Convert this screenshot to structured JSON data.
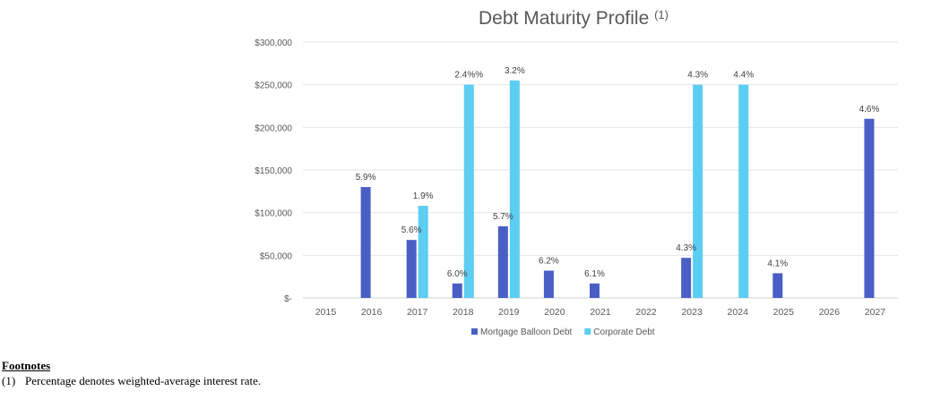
{
  "chart_data": {
    "type": "bar",
    "title": "Debt Maturity Profile",
    "title_superscript": "(1)",
    "categories": [
      "2015",
      "2016",
      "2017",
      "2018",
      "2019",
      "2020",
      "2021",
      "2022",
      "2023",
      "2024",
      "2025",
      "2026",
      "2027"
    ],
    "series": [
      {
        "name": "Mortgage Balloon Debt",
        "color": "#4a5fc6",
        "values": [
          0,
          130000,
          68000,
          17000,
          84000,
          32000,
          17000,
          0,
          47000,
          0,
          29000,
          0,
          210000
        ],
        "labels": [
          "",
          "5.9%",
          "5.6%",
          "6.0%",
          "5.7%",
          "6.2%",
          "6.1%",
          "",
          "4.3%",
          "",
          "4.1%",
          "",
          "4.6%"
        ]
      },
      {
        "name": "Corporate Debt",
        "color": "#5ccdf3",
        "values": [
          0,
          0,
          108000,
          250000,
          255000,
          0,
          0,
          0,
          250000,
          250000,
          0,
          0,
          0
        ],
        "labels": [
          "",
          "",
          "1.9%",
          "2.4%%",
          "3.2%",
          "",
          "",
          "",
          "4.3%",
          "4.4%",
          "",
          "",
          ""
        ]
      }
    ],
    "ylim": [
      0,
      300000
    ],
    "yticks": [
      0,
      50000,
      100000,
      150000,
      200000,
      250000,
      300000
    ],
    "ytick_labels": [
      "$-",
      "$50,000",
      "$100,000",
      "$150,000",
      "$200,000",
      "$250,000",
      "$300,000"
    ],
    "grid": true,
    "legend_position": "bottom"
  },
  "footnotes": {
    "title": "Footnotes",
    "items": [
      {
        "num": "(1)",
        "text": "Percentage denotes weighted-average interest rate."
      }
    ]
  }
}
